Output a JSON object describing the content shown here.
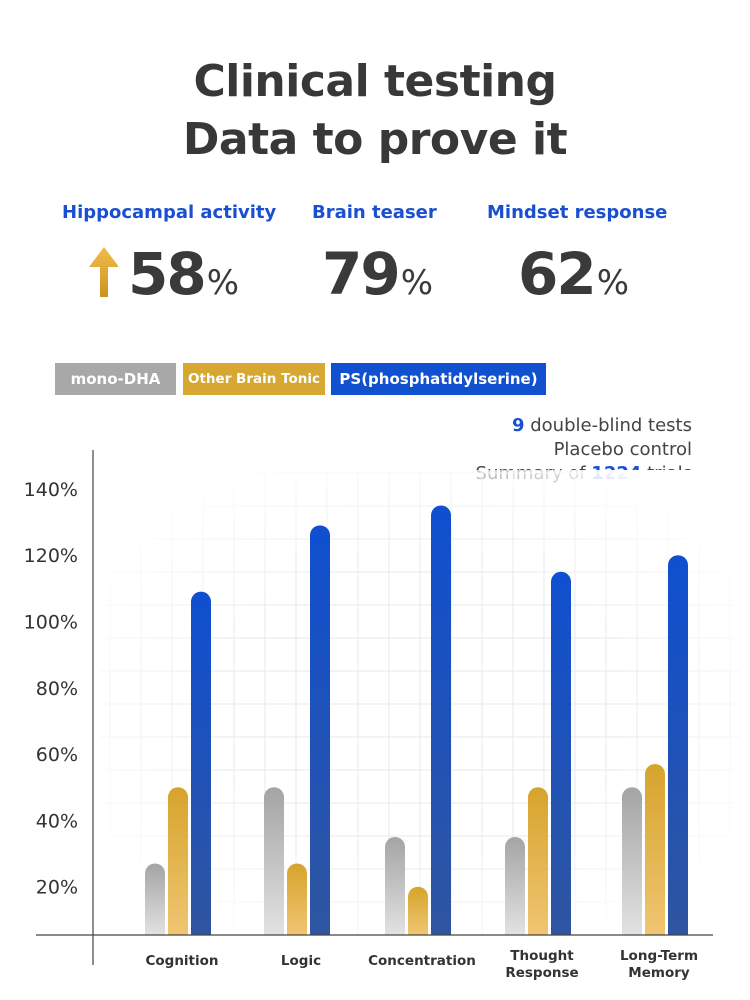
{
  "header": {
    "line1": "Clinical testing",
    "line2": "Data to prove it"
  },
  "stats": [
    {
      "label": "Hippocampal activity",
      "value": "58",
      "unit": "%",
      "icon": "up-arrow-icon"
    },
    {
      "label": "Brain teaser",
      "value": "79",
      "unit": "%"
    },
    {
      "label": "Mindset response",
      "value": "62",
      "unit": "%"
    }
  ],
  "notes": {
    "line1_num": "9",
    "line1_text": " double-blind tests",
    "line2": "Placebo control",
    "line3_pre": "Summary of ",
    "line3_num": "1224",
    "line3_post": " trials"
  },
  "colors": {
    "mono_dha": "#a8a8a8",
    "other": "#d6a832",
    "ps": "#1150cf",
    "accent": "#1a4fd1"
  },
  "chart_data": {
    "type": "bar",
    "categories": [
      "Cognition",
      "Logic",
      "Concentration",
      "Thought Response",
      "Long-Term Memory"
    ],
    "series": [
      {
        "name": "mono-DHA",
        "values": [
          27,
          50,
          35,
          35,
          50
        ]
      },
      {
        "name": "Other Brain Tonic",
        "values": [
          50,
          27,
          20,
          50,
          57
        ]
      },
      {
        "name": "PS(phosphatidylserine)",
        "values": [
          109,
          129,
          135,
          115,
          120
        ]
      }
    ],
    "yticks": [
      "20%",
      "40%",
      "60%",
      "80%",
      "100%",
      "120%",
      "140%"
    ],
    "ylim": [
      0,
      150
    ],
    "grid": true,
    "legend": "top-left"
  }
}
